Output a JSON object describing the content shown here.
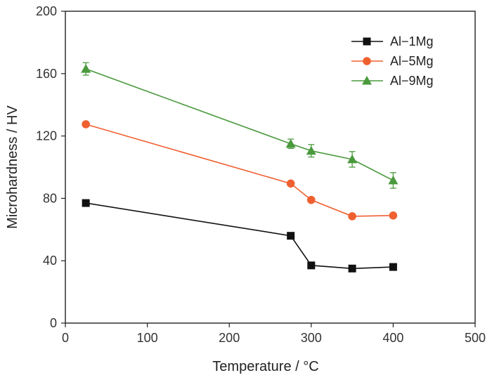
{
  "chart_data": {
    "type": "line",
    "title": "",
    "xlabel": "Temperature / °C",
    "ylabel": "Microhardness / HV",
    "xlim": [
      0,
      500
    ],
    "ylim": [
      0,
      200
    ],
    "x_ticks": [
      "0",
      "100",
      "200",
      "300",
      "400",
      "500"
    ],
    "y_ticks": [
      "0",
      "40",
      "80",
      "120",
      "160",
      "200"
    ],
    "grid": false,
    "legend_position": "top-right",
    "x": [
      25,
      275,
      300,
      350,
      400
    ],
    "series": [
      {
        "name": "Al−1Mg",
        "marker": "square",
        "color": "#111111",
        "values": [
          77,
          56,
          37,
          35,
          36
        ],
        "errors": [
          2,
          1,
          1,
          1,
          1
        ]
      },
      {
        "name": "Al−5Mg",
        "marker": "circle",
        "color": "#ef6030",
        "values": [
          127.5,
          89.5,
          79,
          68.5,
          69
        ],
        "errors": [
          1,
          1,
          1,
          1,
          1
        ]
      },
      {
        "name": "Al−9Mg",
        "marker": "triangle",
        "color": "#4a9a3d",
        "values": [
          163,
          115,
          110.5,
          105,
          91.5
        ],
        "errors": [
          4,
          3,
          4,
          5,
          5
        ]
      }
    ]
  }
}
